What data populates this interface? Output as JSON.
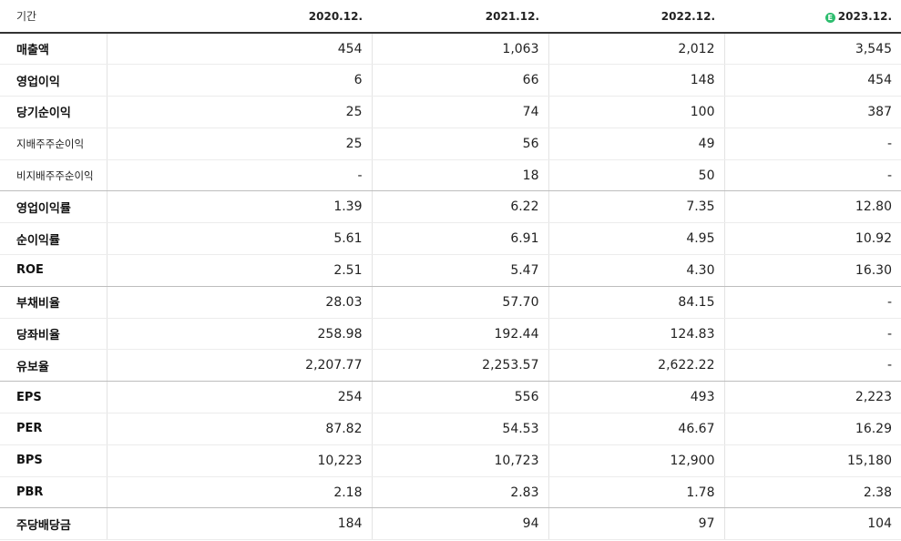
{
  "header": {
    "label": "기간",
    "periods": [
      "2020.12.",
      "2021.12.",
      "2022.12.",
      "2023.12."
    ],
    "estimate_badge": "E",
    "estimate_color": "#2dbd6e"
  },
  "rows": [
    {
      "label": "매출액",
      "values": [
        "454",
        "1,063",
        "2,012",
        "3,545"
      ]
    },
    {
      "label": "영업이익",
      "values": [
        "6",
        "66",
        "148",
        "454"
      ]
    },
    {
      "label": "당기순이익",
      "values": [
        "25",
        "74",
        "100",
        "387"
      ]
    },
    {
      "label": "지배주주순이익",
      "values": [
        "25",
        "56",
        "49",
        "-"
      ]
    },
    {
      "label": "비지배주주순이익",
      "values": [
        "-",
        "18",
        "50",
        "-"
      ]
    },
    {
      "label": "영업이익률",
      "values": [
        "1.39",
        "6.22",
        "7.35",
        "12.80"
      ]
    },
    {
      "label": "순이익률",
      "values": [
        "5.61",
        "6.91",
        "4.95",
        "10.92"
      ]
    },
    {
      "label": "ROE",
      "values": [
        "2.51",
        "5.47",
        "4.30",
        "16.30"
      ]
    },
    {
      "label": "부채비율",
      "values": [
        "28.03",
        "57.70",
        "84.15",
        "-"
      ]
    },
    {
      "label": "당좌비율",
      "values": [
        "258.98",
        "192.44",
        "124.83",
        "-"
      ]
    },
    {
      "label": "유보율",
      "values": [
        "2,207.77",
        "2,253.57",
        "2,622.22",
        "-"
      ]
    },
    {
      "label": "EPS",
      "values": [
        "254",
        "556",
        "493",
        "2,223"
      ]
    },
    {
      "label": "PER",
      "values": [
        "87.82",
        "54.53",
        "46.67",
        "16.29"
      ]
    },
    {
      "label": "BPS",
      "values": [
        "10,223",
        "10,723",
        "12,900",
        "15,180"
      ]
    },
    {
      "label": "PBR",
      "values": [
        "2.18",
        "2.83",
        "1.78",
        "2.38"
      ]
    },
    {
      "label": "주당배당금",
      "values": [
        "184",
        "94",
        "97",
        "104"
      ]
    }
  ]
}
